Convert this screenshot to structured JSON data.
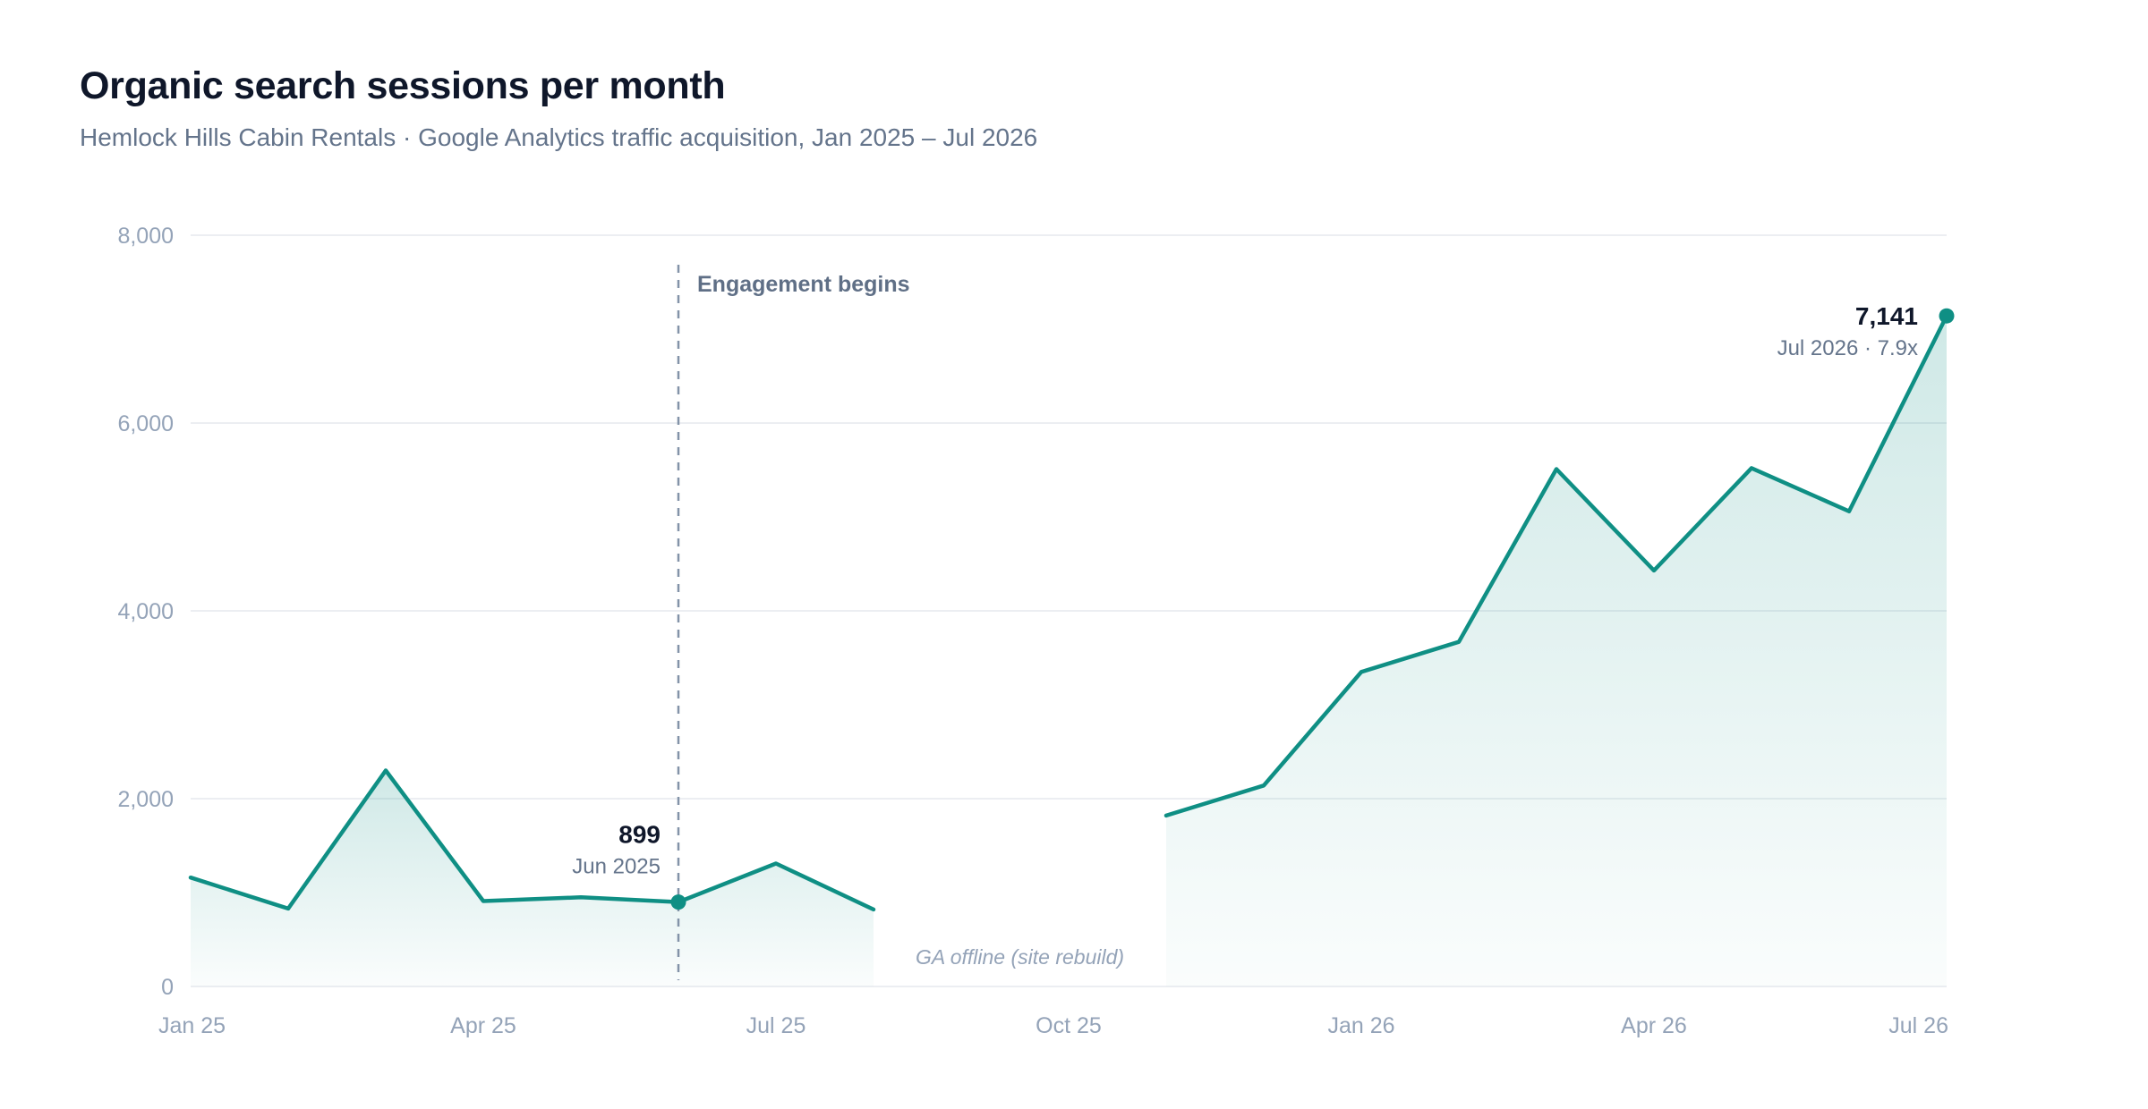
{
  "chart_data": {
    "type": "area",
    "title": "Organic search sessions per month",
    "subtitle": "Hemlock Hills Cabin Rentals · Google Analytics traffic acquisition, Jan 2025 – Jul 2026",
    "x": [
      "2025-01",
      "2025-02",
      "2025-03",
      "2025-04",
      "2025-05",
      "2025-06",
      "2025-07",
      "2025-08",
      "2025-09",
      "2025-10",
      "2025-11",
      "2025-12",
      "2026-01",
      "2026-02",
      "2026-03",
      "2026-04",
      "2026-05",
      "2026-06",
      "2026-07"
    ],
    "series": [
      {
        "values": [
          1160,
          830,
          2300,
          910,
          950,
          899,
          1310,
          820,
          null,
          null,
          1820,
          2140,
          3350,
          3670,
          5510,
          4430,
          5520,
          5060,
          7141
        ]
      }
    ],
    "ylim": [
      0,
      8000
    ],
    "yticks": [
      0,
      2000,
      4000,
      6000,
      8000
    ],
    "ytick_labels": [
      "0",
      "2,000",
      "4,000",
      "6,000",
      "8,000"
    ],
    "xticks": [
      "2025-01",
      "2025-04",
      "2025-07",
      "2025-10",
      "2026-01",
      "2026-04",
      "2026-07"
    ],
    "xtick_labels": [
      "Jan 25",
      "Apr 25",
      "Jul 25",
      "Oct 25",
      "Jan 26",
      "Apr 26",
      "Jul 26"
    ],
    "grid": true,
    "colors": {
      "line": "#0f8f84",
      "fill": "#0f8f84",
      "grid": "#e6e9ee",
      "marker_line": "#8393a8"
    },
    "annotations": {
      "event": {
        "x": "2025-06",
        "label": "Engagement begins"
      },
      "gap": {
        "from": "2025-09",
        "to": "2025-10",
        "label": "GA offline (site rebuild)"
      },
      "start_point": {
        "x": "2025-06",
        "value_label": "899",
        "date_label": "Jun 2025"
      },
      "end_point": {
        "x": "2026-07",
        "value_label": "7,141",
        "date_label": "Jul 2026 · 7.9x"
      }
    }
  }
}
